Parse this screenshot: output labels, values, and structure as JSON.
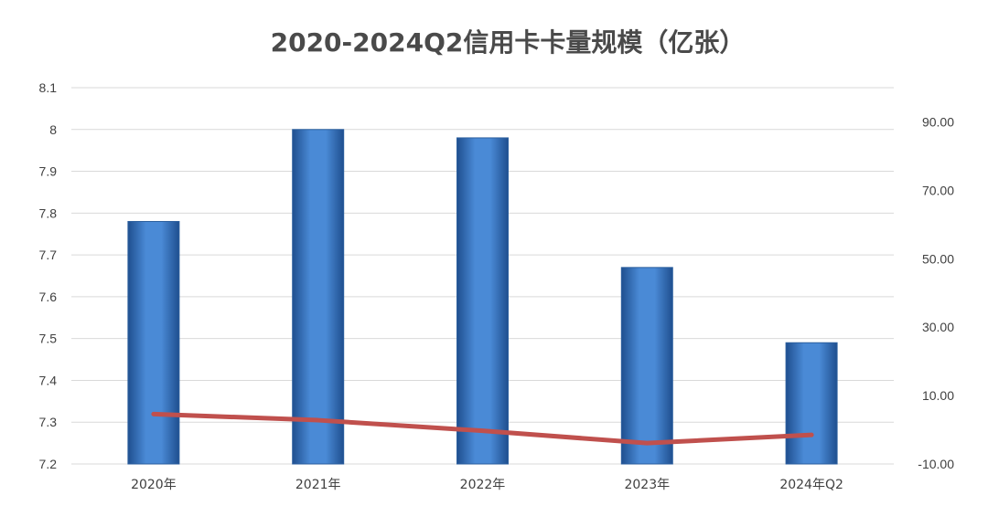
{
  "chart_data": {
    "type": "bar",
    "title": "2020-2024Q2信用卡卡量规模（亿张）",
    "categories": [
      "2020年",
      "2021年",
      "2022年",
      "2023年",
      "2024年Q2"
    ],
    "y_left": {
      "ylim": [
        7.2,
        8.1
      ],
      "ticks": [
        "7.2",
        "7.3",
        "7.4",
        "7.5",
        "7.6",
        "7.7",
        "7.8",
        "7.9",
        "8",
        "8.1"
      ]
    },
    "y_right": {
      "ylim": [
        -10,
        100
      ],
      "ticks": [
        "-10.00",
        "10.00",
        "30.00",
        "50.00",
        "70.00",
        "90.00"
      ]
    },
    "series": [
      {
        "type": "bar",
        "axis": "left",
        "values": [
          7.78,
          8.0,
          7.98,
          7.67,
          7.49
        ],
        "color": "#3f7fcd"
      },
      {
        "type": "line",
        "axis": "right",
        "values": [
          4.6,
          2.8,
          -0.3,
          -3.9,
          -1.5
        ],
        "color": "#c0504d"
      }
    ],
    "grid": true,
    "legend": "none"
  }
}
